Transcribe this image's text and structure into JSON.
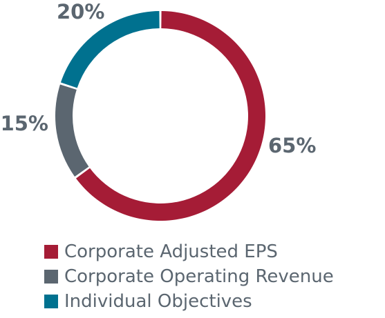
{
  "chart_data": {
    "type": "pie",
    "title": "",
    "series": [
      {
        "name": "Corporate Adjusted EPS",
        "value": 65,
        "label": "65%",
        "color": "#a51c36"
      },
      {
        "name": "Corporate Operating Revenue",
        "value": 15,
        "label": "15%",
        "color": "#5b6670"
      },
      {
        "name": "Individual Objectives",
        "value": 20,
        "label": "20%",
        "color": "#00718f"
      }
    ],
    "legend_position": "bottom-left",
    "label_color": "#5b6670"
  }
}
